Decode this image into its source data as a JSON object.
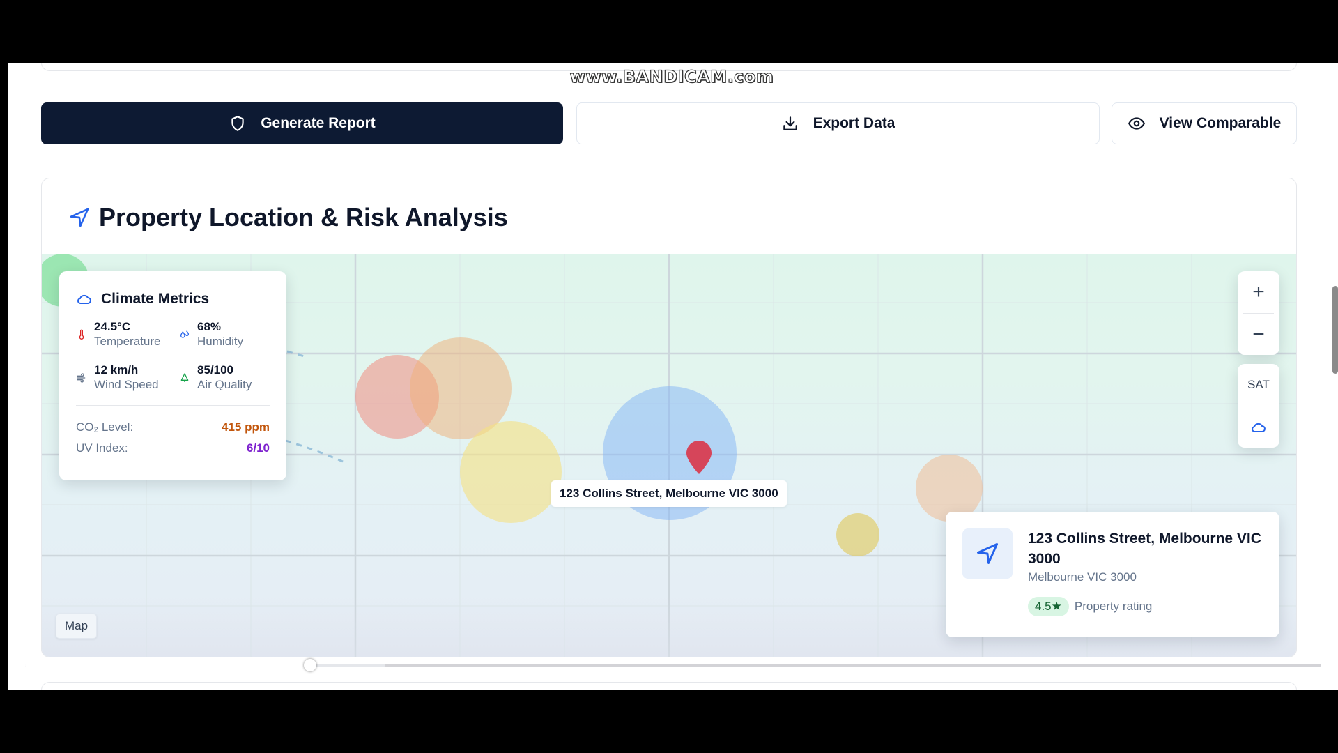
{
  "watermark": "www.BANDICAM.com",
  "actions": {
    "generate_label": "Generate Report",
    "export_label": "Export Data",
    "view_label": "View Comparable"
  },
  "section": {
    "title": "Property Location & Risk Analysis"
  },
  "climate": {
    "title": "Climate Metrics",
    "metrics": [
      {
        "value": "24.5°C",
        "label": "Temperature",
        "icon": "thermometer-icon"
      },
      {
        "value": "68%",
        "label": "Humidity",
        "icon": "droplets-icon"
      },
      {
        "value": "12 km/h",
        "label": "Wind Speed",
        "icon": "wind-icon"
      },
      {
        "value": "85/100",
        "label": "Air Quality",
        "icon": "tree-icon"
      }
    ],
    "co2_label": "CO₂ Level:",
    "co2_value": "415 ppm",
    "uv_label": "UV Index:",
    "uv_value": "6/10"
  },
  "map": {
    "pin_label": "123 Collins Street, Melbourne VIC 3000",
    "zoom_in": "+",
    "zoom_out": "−",
    "satellite_label": "SAT",
    "map_type_label": "Map"
  },
  "property": {
    "title": "123 Collins Street, Melbourne VIC 3000",
    "subtitle": "Melbourne VIC 3000",
    "rating": "4.5★",
    "rating_label": "Property rating"
  },
  "colors": {
    "primary_button": "#0d1a33",
    "accent_blue": "#2563eb",
    "pin_red": "#d6455a",
    "co2_orange": "#c2560c",
    "uv_purple": "#7e22ce"
  },
  "video": {
    "progress": 0.22
  }
}
